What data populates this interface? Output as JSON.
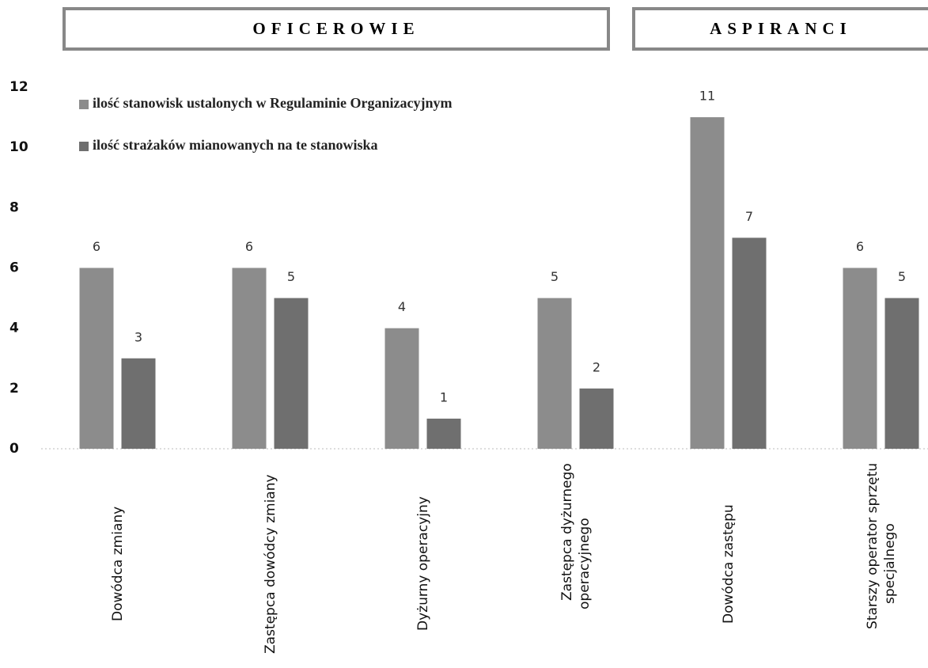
{
  "chart_data": {
    "type": "bar",
    "headers": [
      "OFICEROWIE",
      "ASPIRANCI"
    ],
    "categories": [
      "Dowódca zmiany",
      "Zastępca dowódcy zmiany",
      "Dyżurny operacyjny",
      "Zastępca dyżurnego operacyjnego",
      "Dowódca zastępu",
      "Starszy operator sprzętu specjalnego"
    ],
    "series": [
      {
        "name": "ilość stanowisk ustalonych w Regulaminie Organizacyjnym",
        "color": "#8c8c8c",
        "values": [
          6,
          6,
          4,
          5,
          11,
          6
        ]
      },
      {
        "name": "ilość strażaków mianowanych na te stanowiska",
        "color": "#6f6f6f",
        "values": [
          3,
          5,
          1,
          2,
          7,
          5
        ]
      }
    ],
    "ylim": [
      0,
      12
    ],
    "yticks": [
      0,
      2,
      4,
      6,
      8,
      10,
      12
    ],
    "grid": false
  }
}
